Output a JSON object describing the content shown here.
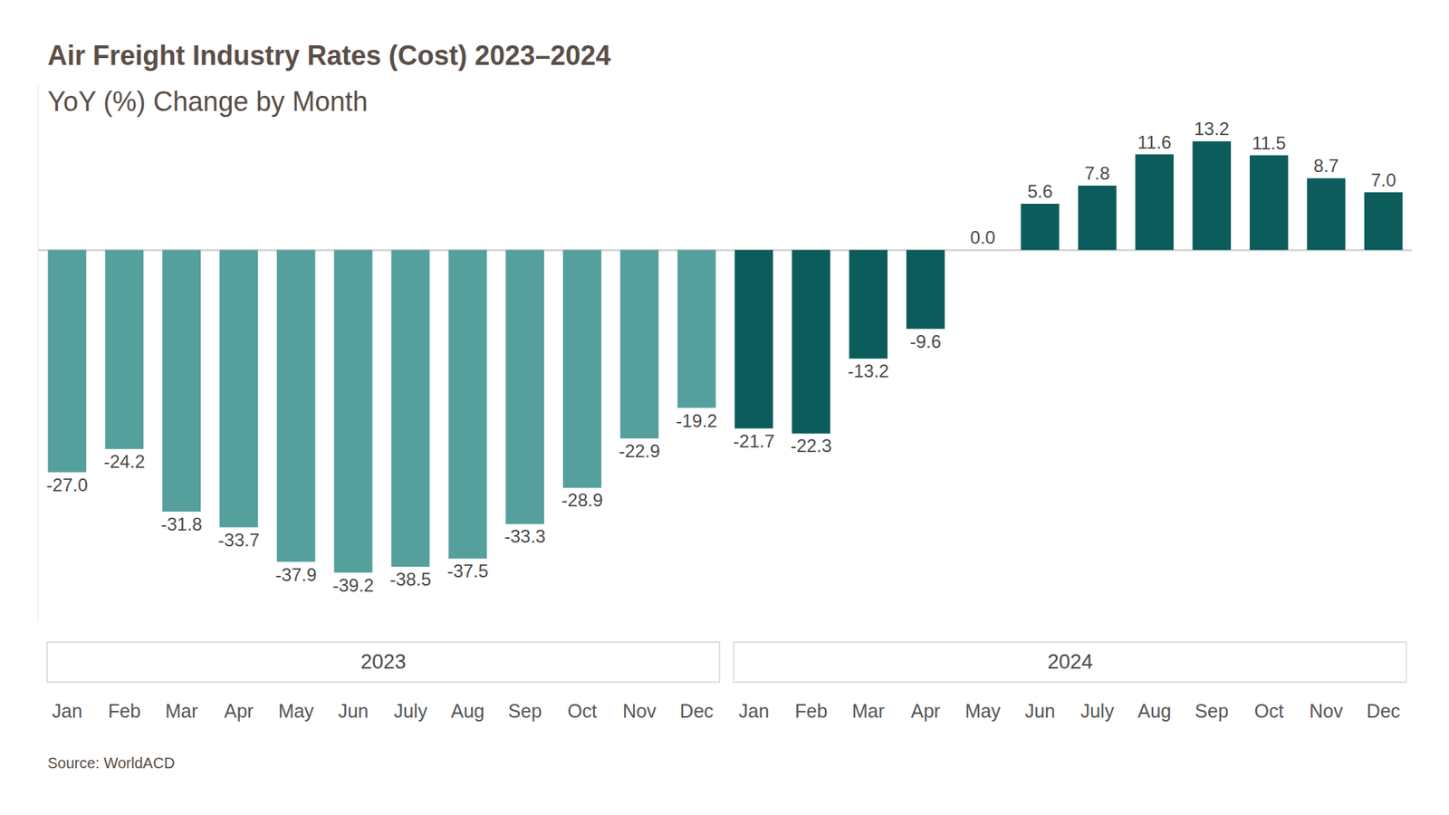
{
  "chart_data": {
    "type": "bar",
    "title": "Air Freight Industry Rates (Cost) 2023–2024",
    "subtitle": "YoY (%) Change by Month",
    "source": "Source: WorldACD",
    "categories": [
      "Jan",
      "Feb",
      "Mar",
      "Apr",
      "May",
      "Jun",
      "July",
      "Aug",
      "Sep",
      "Oct",
      "Nov",
      "Dec",
      "Jan",
      "Feb",
      "Mar",
      "Apr",
      "May",
      "Jun",
      "July",
      "Aug",
      "Sep",
      "Oct",
      "Nov",
      "Dec"
    ],
    "series": [
      {
        "name": "2023",
        "color": "#559f9d",
        "values": [
          -27.0,
          -24.2,
          -31.8,
          -33.7,
          -37.9,
          -39.2,
          -38.5,
          -37.5,
          -33.3,
          -28.9,
          -22.9,
          -19.2,
          null,
          null,
          null,
          null,
          null,
          null,
          null,
          null,
          null,
          null,
          null,
          null
        ],
        "value_labels": [
          "-27.0",
          "-24.2",
          "-31.8",
          "-33.7",
          "-37.9",
          "-39.2",
          "-38.5",
          "-37.5",
          "-33.3",
          "-28.9",
          "-22.9",
          "-19.2",
          null,
          null,
          null,
          null,
          null,
          null,
          null,
          null,
          null,
          null,
          null,
          null
        ]
      },
      {
        "name": "2024",
        "color": "#0b5c5b",
        "values": [
          null,
          null,
          null,
          null,
          null,
          null,
          null,
          null,
          null,
          null,
          null,
          null,
          -21.7,
          -22.3,
          -13.2,
          -9.6,
          0.0,
          5.6,
          7.8,
          11.6,
          13.2,
          11.5,
          8.7,
          7.0
        ],
        "value_labels": [
          null,
          null,
          null,
          null,
          null,
          null,
          null,
          null,
          null,
          null,
          null,
          null,
          "-21.7",
          "-22.3",
          "-13.2",
          "-9.6",
          "0.0",
          "5.6",
          "7.8",
          "11.6",
          "13.2",
          "11.5",
          "8.7",
          "7.0"
        ]
      }
    ],
    "ylim": [
      -45,
      20
    ],
    "yticks": [
      0
    ],
    "grid": true,
    "data_labels": true,
    "tick_labels": "x"
  }
}
